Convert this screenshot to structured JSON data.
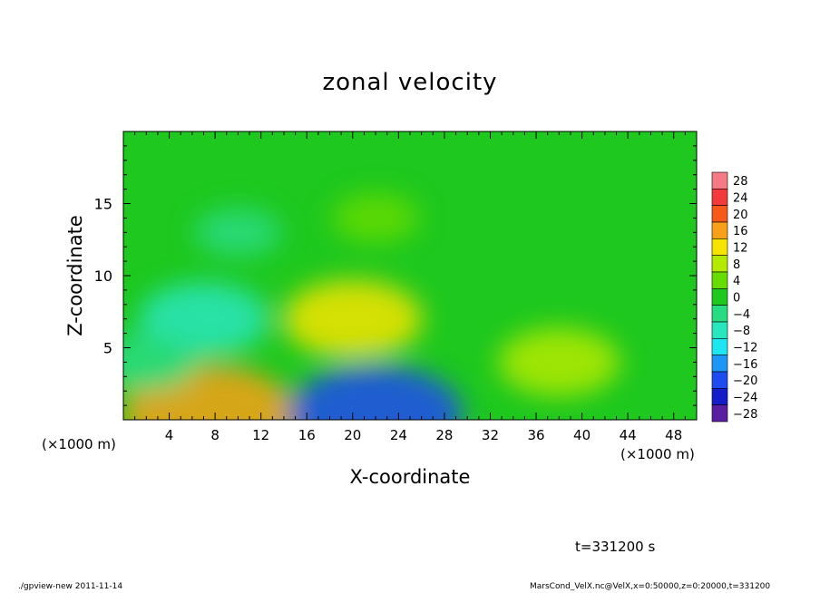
{
  "chart_data": {
    "type": "heatmap",
    "title": "zonal velocity",
    "xlabel": "X-coordinate",
    "ylabel": "Z-coordinate",
    "x_unit_label": "(×1000 m)",
    "xlim": [
      0,
      50
    ],
    "ylim": [
      0,
      20
    ],
    "xticks": [
      4,
      8,
      12,
      16,
      20,
      24,
      28,
      32,
      36,
      40,
      44,
      48
    ],
    "yticks": [
      5,
      10,
      15
    ],
    "colorbar": {
      "levels": [
        28,
        24,
        20,
        16,
        12,
        8,
        4,
        0,
        -4,
        -8,
        -12,
        -16,
        -20,
        -24,
        -28
      ],
      "colors": [
        "#f47a84",
        "#f33a3a",
        "#f75a18",
        "#f7a018",
        "#f6e400",
        "#b4ea00",
        "#66dc00",
        "#1ec81e",
        "#28dc82",
        "#28e6be",
        "#1ce6f0",
        "#1e96f5",
        "#1e4bf0",
        "#141ec8",
        "#5a1ea0"
      ]
    },
    "features": [
      {
        "x": 7.5,
        "z": 0.4,
        "u": 15
      },
      {
        "x": 22,
        "z": 0.4,
        "u": -20
      },
      {
        "x": 20,
        "z": 7,
        "u": 10
      },
      {
        "x": 38,
        "z": 4,
        "u": 8
      },
      {
        "x": 7,
        "z": 7,
        "u": -9
      },
      {
        "x": 2,
        "z": 4,
        "u": -6
      },
      {
        "x": 10,
        "z": 13,
        "u": -4
      },
      {
        "x": 22,
        "z": 14,
        "u": 4
      }
    ],
    "background_u": 0,
    "grid": false,
    "colorbar_position": "right"
  },
  "annotations": {
    "time": "t=331200 s",
    "footer_left": "./gpview-new  2011-11-14",
    "footer_right": "MarsCond_VelX.nc@VelX,x=0:50000,z=0:20000,t=331200"
  }
}
